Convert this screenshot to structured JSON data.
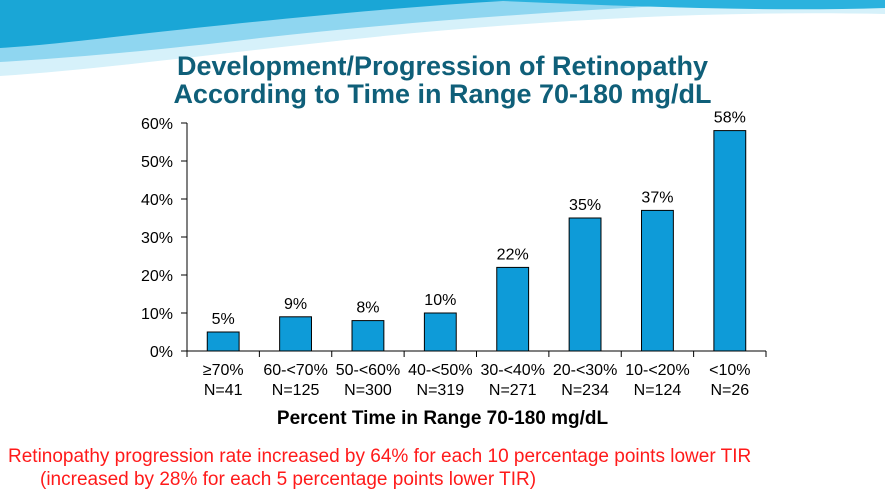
{
  "title": {
    "line1": "Development/Progression of Retinopathy",
    "line2": "According to Time in Range 70-180 mg/dL"
  },
  "footnote": {
    "line1": "Retinopathy progression rate increased by 64% for each 10 percentage points lower TIR",
    "line2": "(increased by 28% for each 5 percentage points lower TIR)"
  },
  "colors": {
    "bar": "#0e9bd8",
    "title": "#0f5f79",
    "footnote": "#ff1a1a",
    "banner_light": "#bfe9f7",
    "banner_dark": "#1aa6d6"
  },
  "chart_data": {
    "type": "bar",
    "xlabel": "Percent Time in Range 70-180 mg/dL",
    "ylabel": "",
    "ylim": [
      0,
      60
    ],
    "yticks": [
      "0%",
      "10%",
      "20%",
      "30%",
      "40%",
      "50%",
      "60%"
    ],
    "grid": false,
    "categories": [
      {
        "range": "≥70%",
        "n": "N=41"
      },
      {
        "range": "60-<70%",
        "n": "N=125"
      },
      {
        "range": "50-<60%",
        "n": "N=300"
      },
      {
        "range": "40-<50%",
        "n": "N=319"
      },
      {
        "range": "30-<40%",
        "n": "N=271"
      },
      {
        "range": "20-<30%",
        "n": "N=234"
      },
      {
        "range": "10-<20%",
        "n": "N=124"
      },
      {
        "range": "<10%",
        "n": "N=26"
      }
    ],
    "values": [
      5,
      9,
      8,
      10,
      22,
      35,
      37,
      58
    ],
    "data_labels": [
      "5%",
      "9%",
      "8%",
      "10%",
      "22%",
      "35%",
      "37%",
      "58%"
    ]
  }
}
